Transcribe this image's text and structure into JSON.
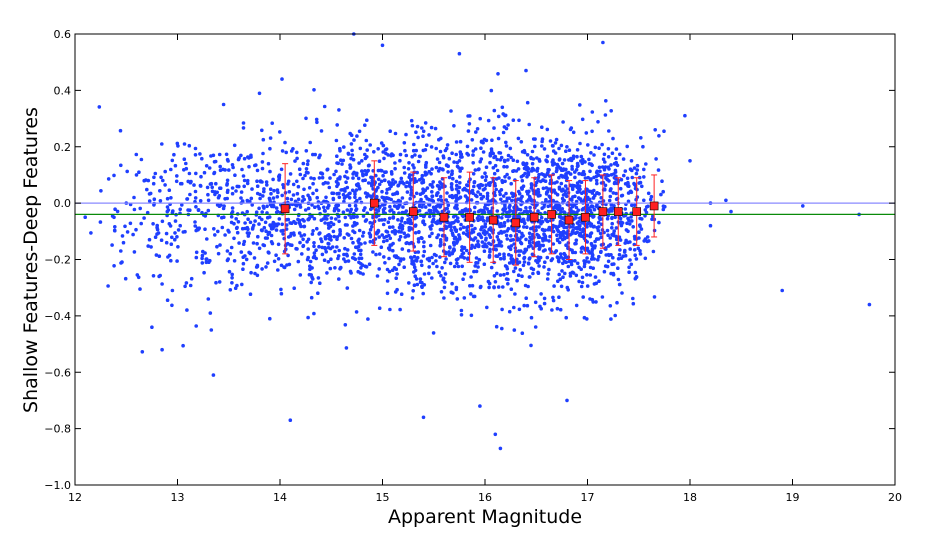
{
  "chart_data": {
    "type": "scatter",
    "title": "",
    "xlabel": "Apparent Magnitude",
    "ylabel": "Shallow Features-Deep Features",
    "xlim": [
      12,
      20
    ],
    "ylim": [
      -1.0,
      0.6
    ],
    "xticks": [
      "12",
      "13",
      "14",
      "15",
      "16",
      "17",
      "18",
      "19",
      "20"
    ],
    "yticks": [
      "−1.0",
      "−0.8",
      "−0.6",
      "−0.4",
      "−0.2",
      "0.0",
      "0.2",
      "0.4",
      "0.6"
    ],
    "grid": false,
    "legend": "none",
    "reference_lines": [
      {
        "y": 0.0,
        "color": "#8a8aff"
      },
      {
        "y": -0.04,
        "color": "#0a8a0a"
      }
    ],
    "series": [
      {
        "kind": "scatter",
        "color": "#1f3fff",
        "cloud": {
          "n": 3200,
          "x_range": [
            12.1,
            17.8
          ],
          "center_y": -0.04,
          "density_peak_x": 16.9,
          "spread_y": 0.14
        },
        "points": [
          {
            "x": 12.1,
            "y": -0.05
          },
          {
            "x": 12.5,
            "y": 0.0
          },
          {
            "x": 12.6,
            "y": 0.1
          },
          {
            "x": 12.75,
            "y": -0.44
          },
          {
            "x": 12.8,
            "y": -0.11
          },
          {
            "x": 12.82,
            "y": -0.26
          },
          {
            "x": 12.85,
            "y": -0.52
          },
          {
            "x": 12.9,
            "y": -0.03
          },
          {
            "x": 12.95,
            "y": -0.31
          },
          {
            "x": 13.3,
            "y": -0.34
          },
          {
            "x": 13.32,
            "y": -0.39
          },
          {
            "x": 13.33,
            "y": -0.45
          },
          {
            "x": 13.35,
            "y": -0.61
          },
          {
            "x": 13.45,
            "y": 0.35
          },
          {
            "x": 13.9,
            "y": -0.41
          },
          {
            "x": 14.02,
            "y": 0.44
          },
          {
            "x": 14.1,
            "y": -0.77
          },
          {
            "x": 14.72,
            "y": 0.6
          },
          {
            "x": 15.0,
            "y": 0.56
          },
          {
            "x": 15.4,
            "y": -0.76
          },
          {
            "x": 15.75,
            "y": 0.53
          },
          {
            "x": 15.95,
            "y": -0.72
          },
          {
            "x": 16.1,
            "y": -0.82
          },
          {
            "x": 16.15,
            "y": -0.87
          },
          {
            "x": 16.4,
            "y": 0.47
          },
          {
            "x": 16.8,
            "y": -0.7
          },
          {
            "x": 17.15,
            "y": 0.57
          },
          {
            "x": 17.95,
            "y": 0.31
          },
          {
            "x": 18.0,
            "y": 0.15
          },
          {
            "x": 18.2,
            "y": 0.0
          },
          {
            "x": 18.2,
            "y": -0.08
          },
          {
            "x": 18.35,
            "y": 0.01
          },
          {
            "x": 18.4,
            "y": -0.03
          },
          {
            "x": 18.9,
            "y": -0.31
          },
          {
            "x": 19.1,
            "y": -0.01
          },
          {
            "x": 19.65,
            "y": -0.04
          },
          {
            "x": 19.75,
            "y": -0.36
          }
        ]
      },
      {
        "kind": "errorbar",
        "color": "#ff2020",
        "points": [
          {
            "x": 14.05,
            "y": -0.02,
            "err": 0.16
          },
          {
            "x": 14.92,
            "y": 0.0,
            "err": 0.15
          },
          {
            "x": 15.3,
            "y": -0.03,
            "err": 0.14
          },
          {
            "x": 15.6,
            "y": -0.05,
            "err": 0.14
          },
          {
            "x": 15.85,
            "y": -0.05,
            "err": 0.16
          },
          {
            "x": 16.08,
            "y": -0.06,
            "err": 0.15
          },
          {
            "x": 16.3,
            "y": -0.07,
            "err": 0.15
          },
          {
            "x": 16.48,
            "y": -0.05,
            "err": 0.14
          },
          {
            "x": 16.65,
            "y": -0.04,
            "err": 0.14
          },
          {
            "x": 16.82,
            "y": -0.06,
            "err": 0.14
          },
          {
            "x": 16.98,
            "y": -0.05,
            "err": 0.13
          },
          {
            "x": 17.15,
            "y": -0.03,
            "err": 0.13
          },
          {
            "x": 17.3,
            "y": -0.03,
            "err": 0.12
          },
          {
            "x": 17.48,
            "y": -0.03,
            "err": 0.12
          },
          {
            "x": 17.65,
            "y": -0.01,
            "err": 0.11
          }
        ]
      }
    ]
  }
}
